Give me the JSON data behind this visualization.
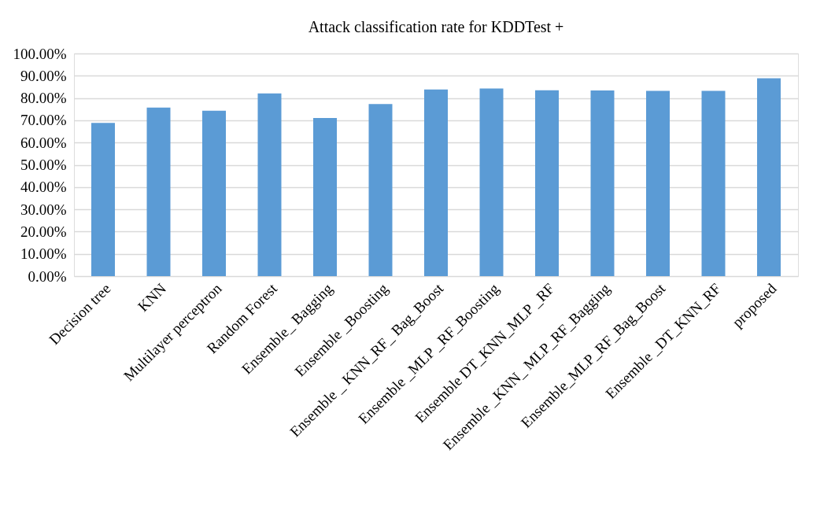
{
  "chart_data": {
    "type": "bar",
    "title": "Attack classification rate for KDDTest +",
    "categories": [
      "Decision tree",
      "KNN",
      "Multilayer perceptron",
      "Random Forest",
      "Ensemble_ Bagging",
      "Ensemble _Boosting",
      "Ensemble _ KNN_RF_ Bag_Boost",
      "Ensemble _MLP _RF_Boosting",
      "Ensemble DT_KNN_MLP _RF",
      "Ensemble _KNN_ MLP_RF_Bagging",
      "Ensemble_MLP_RF_Bag_Boost",
      "Ensemble _DT_KNN_RF",
      "proposed"
    ],
    "values": [
      68.8,
      75.7,
      74.3,
      82.1,
      71.0,
      77.3,
      83.8,
      84.3,
      83.5,
      83.4,
      83.2,
      83.2,
      88.9
    ],
    "color": "#5b9bd5",
    "ylim": [
      0,
      100
    ],
    "yticks": [
      {
        "value": 0,
        "label": "0.00%"
      },
      {
        "value": 10,
        "label": "10.00%"
      },
      {
        "value": 20,
        "label": "20.00%"
      },
      {
        "value": 30,
        "label": "30.00%"
      },
      {
        "value": 40,
        "label": "40.00%"
      },
      {
        "value": 50,
        "label": "50.00%"
      },
      {
        "value": 60,
        "label": "60.00%"
      },
      {
        "value": 70,
        "label": "70.00%"
      },
      {
        "value": 80,
        "label": "80.00%"
      },
      {
        "value": 90,
        "label": "90.00%"
      },
      {
        "value": 100,
        "label": "100.00%"
      }
    ],
    "grid": "y"
  }
}
